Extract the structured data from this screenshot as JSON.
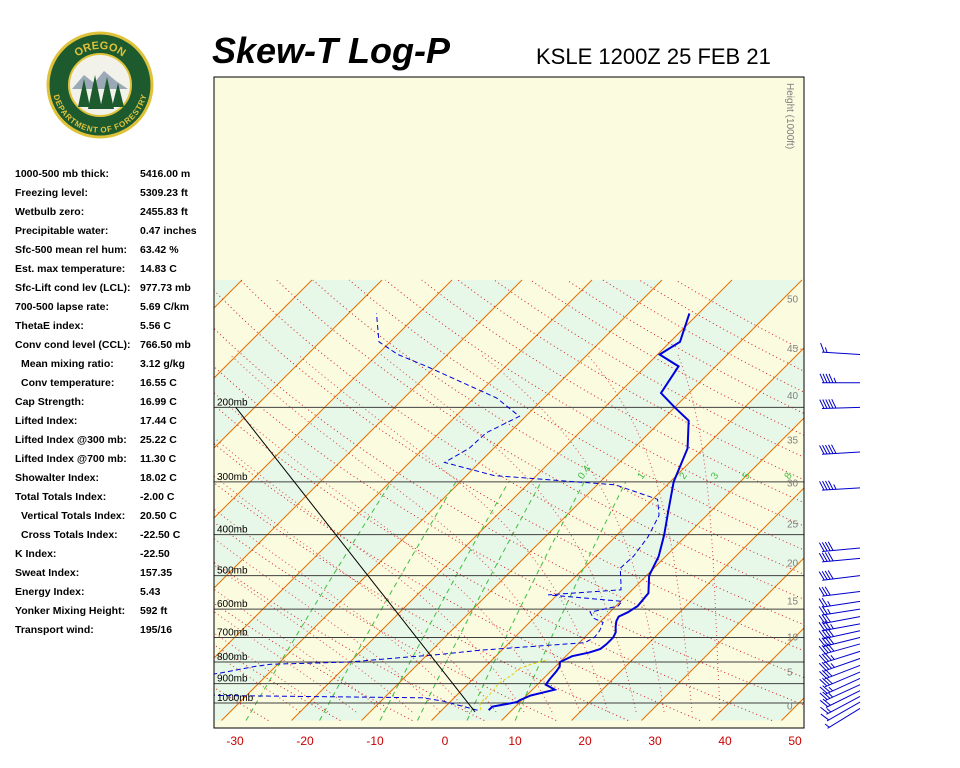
{
  "header": {
    "title": "Skew-T Log-P",
    "station_line": "KSLE 1200Z 25 FEB 21"
  },
  "logo": {
    "top_text": "OREGON",
    "bottom_text": "DEPARTMENT OF FORESTRY"
  },
  "indices": [
    {
      "label": "1000-500 mb thick:",
      "value": "5416.00 m"
    },
    {
      "label": "Freezing level:",
      "value": "5309.23 ft"
    },
    {
      "label": "Wetbulb zero:",
      "value": "2455.83 ft"
    },
    {
      "label": "Precipitable water:",
      "value": "0.47 inches"
    },
    {
      "label": "Sfc-500 mean rel hum:",
      "value": "63.42 %"
    },
    {
      "label": "Est. max temperature:",
      "value": "14.83 C"
    },
    {
      "label": "Sfc-Lift cond lev (LCL):",
      "value": "977.73 mb"
    },
    {
      "label": "700-500 lapse rate:",
      "value": "5.69 C/km"
    },
    {
      "label": "ThetaE index:",
      "value": "5.56 C"
    },
    {
      "label": "Conv cond level (CCL):",
      "value": "766.50 mb"
    },
    {
      "label": "Mean mixing ratio:",
      "value": "3.12 g/kg",
      "indent": true
    },
    {
      "label": "Conv temperature:",
      "value": "16.55 C",
      "indent": true
    },
    {
      "label": "Cap Strength:",
      "value": "16.99 C"
    },
    {
      "label": "Lifted Index:",
      "value": "17.44 C"
    },
    {
      "label": "Lifted Index @300 mb:",
      "value": "25.22 C"
    },
    {
      "label": "Lifted Index @700 mb:",
      "value": "11.30 C"
    },
    {
      "label": "Showalter Index:",
      "value": "18.02 C"
    },
    {
      "label": "Total Totals Index:",
      "value": "-2.00 C"
    },
    {
      "label": "Vertical Totals Index:",
      "value": "20.50 C",
      "indent": true
    },
    {
      "label": "Cross Totals Index:",
      "value": "-22.50 C",
      "indent": true
    },
    {
      "label": "K Index:",
      "value": "-22.50"
    },
    {
      "label": "Sweat Index:",
      "value": "157.35"
    },
    {
      "label": "Energy Index:",
      "value": "5.43"
    },
    {
      "label": "Yonker Mixing Height:",
      "value": "592 ft"
    },
    {
      "label": "Transport wind:",
      "value": "195/16"
    }
  ],
  "colors": {
    "temperature": "#0000dd",
    "dewpoint": "#0000dd",
    "parcel": "#000000",
    "isotherm": "#e87000",
    "dry_adiabat": "#d22020",
    "moist_adiabat": "#d22020",
    "mixing_ratio": "#3fbf3f",
    "isobar": "#404040",
    "wind_barb": "#0000cc",
    "band_green": "#e8f8e8",
    "band_yellow": "#fbfbe0",
    "x_tick_label": "#cc0000",
    "height_label": "#808080",
    "mixing_label": "#3fbf3f"
  },
  "chart_data": {
    "type": "skew-t log-p",
    "title": "Skew-T Log-P",
    "x_axis": {
      "unit": "C",
      "range": [
        -30,
        50
      ],
      "ticks": [
        "-30",
        "-20",
        "-10",
        "0",
        "10",
        "20",
        "30",
        "40",
        "50"
      ]
    },
    "pressure_axis": {
      "scale": "log",
      "range_mb": [
        1050,
        200
      ],
      "ticks": [
        "1000mb",
        "900mb",
        "800mb",
        "700mb",
        "600mb",
        "500mb",
        "400mb",
        "300mb",
        "200mb"
      ]
    },
    "height_axis": {
      "label": "Height (1000ft)",
      "ticks": [
        "0",
        "5",
        "10",
        "15",
        "20",
        "25",
        "30",
        "35",
        "40",
        "45",
        "50"
      ]
    },
    "mixing_ratio_labels": [
      "0.4",
      "1",
      "2",
      "3",
      "5",
      "8"
    ],
    "grid": true,
    "series": [
      {
        "role": "temperature",
        "points": [
          [
            1040,
            6.7
          ],
          [
            1020,
            6.7
          ],
          [
            995,
            9.6
          ],
          [
            985,
            9.7
          ],
          [
            960,
            10.6
          ],
          [
            930,
            13.2
          ],
          [
            905,
            11.2
          ],
          [
            880,
            11.0
          ],
          [
            840,
            10.8
          ],
          [
            820,
            10.6
          ],
          [
            800,
            10.0
          ],
          [
            775,
            10.9
          ],
          [
            760,
            12.8
          ],
          [
            745,
            13.9
          ],
          [
            725,
            14.1
          ],
          [
            700,
            14.1
          ],
          [
            680,
            13.7
          ],
          [
            660,
            12.9
          ],
          [
            640,
            12.2
          ],
          [
            625,
            11.9
          ],
          [
            610,
            12.6
          ],
          [
            590,
            13.1
          ],
          [
            550,
            12.8
          ],
          [
            500,
            10.4
          ],
          [
            450,
            9.0
          ],
          [
            400,
            6.7
          ],
          [
            350,
            3.8
          ],
          [
            300,
            0.5
          ],
          [
            250,
            -2.3
          ],
          [
            215,
            -6.1
          ],
          [
            200,
            -10.0
          ],
          [
            185,
            -14.0
          ],
          [
            160,
            -15.3
          ],
          [
            150,
            -19.7
          ],
          [
            140,
            -18.6
          ],
          [
            120,
            -21.3
          ]
        ]
      },
      {
        "role": "dewpoint",
        "points": [
          [
            1040,
            5.1
          ],
          [
            990,
            -1.1
          ],
          [
            972,
            -4.5
          ],
          [
            960,
            -34.0
          ],
          [
            955,
            -35.5
          ],
          [
            950,
            -38.5
          ],
          [
            920,
            -39.6
          ],
          [
            915,
            -40.0
          ],
          [
            905,
            -41.5
          ],
          [
            880,
            -40.5
          ],
          [
            860,
            -38.8
          ],
          [
            850,
            -37.0
          ],
          [
            820,
            -33.0
          ],
          [
            810,
            -31.0
          ],
          [
            800,
            -20.0
          ],
          [
            780,
            -13.0
          ],
          [
            770,
            -9.0
          ],
          [
            760,
            -6.0
          ],
          [
            750,
            -3.0
          ],
          [
            720,
            10.8
          ],
          [
            700,
            11.4
          ],
          [
            675,
            11.2
          ],
          [
            645,
            10.5
          ],
          [
            630,
            8.5
          ],
          [
            610,
            7.2
          ],
          [
            590,
            10.3
          ],
          [
            575,
            10.2
          ],
          [
            555,
            -1.3
          ],
          [
            540,
            8.4
          ],
          [
            520,
            7.4
          ],
          [
            480,
            5.2
          ],
          [
            450,
            5.4
          ],
          [
            405,
            4.7
          ],
          [
            360,
            3.2
          ],
          [
            330,
            0.7
          ],
          [
            305,
            -7.4
          ],
          [
            290,
            -26.0
          ],
          [
            270,
            -35.0
          ],
          [
            250,
            -33.5
          ],
          [
            230,
            -33.3
          ],
          [
            210,
            -30.9
          ],
          [
            190,
            -36.8
          ],
          [
            160,
            -51.3
          ],
          [
            150,
            -57.1
          ],
          [
            140,
            -61.6
          ],
          [
            120,
            -66.0
          ]
        ]
      },
      {
        "role": "parcel",
        "points": [
          [
            1050,
            5.0
          ],
          [
            200,
            -72.7
          ]
        ]
      },
      {
        "role": "mixing-height-trace",
        "points": [
          [
            1040,
            5.6
          ],
          [
            1000,
            4.4
          ],
          [
            960,
            4.6
          ],
          [
            930,
            4.5
          ],
          [
            900,
            4.3
          ],
          [
            870,
            4.8
          ],
          [
            850,
            5.1
          ],
          [
            830,
            5.0
          ],
          [
            810,
            6.2
          ],
          [
            790,
            8.0
          ]
        ]
      }
    ],
    "wind_barbs": [
      {
        "p": 1030,
        "dir": 180,
        "kt": 5
      },
      {
        "p": 995,
        "dir": 185,
        "kt": 10
      },
      {
        "p": 965,
        "dir": 190,
        "kt": 15
      },
      {
        "p": 935,
        "dir": 195,
        "kt": 20
      },
      {
        "p": 905,
        "dir": 200,
        "kt": 25
      },
      {
        "p": 875,
        "dir": 200,
        "kt": 25
      },
      {
        "p": 845,
        "dir": 205,
        "kt": 30
      },
      {
        "p": 815,
        "dir": 210,
        "kt": 30
      },
      {
        "p": 785,
        "dir": 215,
        "kt": 35
      },
      {
        "p": 755,
        "dir": 220,
        "kt": 35
      },
      {
        "p": 725,
        "dir": 225,
        "kt": 40
      },
      {
        "p": 700,
        "dir": 230,
        "kt": 40
      },
      {
        "p": 675,
        "dir": 235,
        "kt": 40
      },
      {
        "p": 650,
        "dir": 240,
        "kt": 35
      },
      {
        "p": 625,
        "dir": 240,
        "kt": 30
      },
      {
        "p": 600,
        "dir": 245,
        "kt": 25
      },
      {
        "p": 575,
        "dir": 245,
        "kt": 25
      },
      {
        "p": 545,
        "dir": 250,
        "kt": 30
      },
      {
        "p": 500,
        "dir": 250,
        "kt": 40
      },
      {
        "p": 455,
        "dir": 255,
        "kt": 40
      },
      {
        "p": 430,
        "dir": 255,
        "kt": 40
      },
      {
        "p": 310,
        "dir": 260,
        "kt": 45
      },
      {
        "p": 255,
        "dir": 260,
        "kt": 50
      },
      {
        "p": 200,
        "dir": 265,
        "kt": 50
      },
      {
        "p": 175,
        "dir": 270,
        "kt": 45
      },
      {
        "p": 150,
        "dir": 280,
        "kt": 15
      }
    ]
  }
}
